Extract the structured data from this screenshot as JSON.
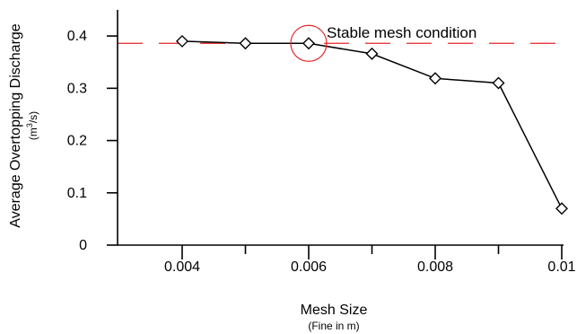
{
  "chart_data": {
    "type": "line",
    "title": "",
    "xlabel": "Mesh Size",
    "xlabel_sub": "(Fine in m)",
    "ylabel": "Average Overtopping Discharge",
    "ylabel_unit_prefix": "(m",
    "ylabel_unit_exp": "3",
    "ylabel_unit_suffix": "/s)",
    "xlim": [
      0.003,
      0.01
    ],
    "ylim": [
      0,
      0.45
    ],
    "xticks": [
      0.004,
      0.006,
      0.008,
      0.01
    ],
    "xtick_labels": [
      "0.004",
      "0.006",
      "0.008",
      "0.01"
    ],
    "yticks": [
      0,
      0.1,
      0.2,
      0.3,
      0.4
    ],
    "ytick_labels": [
      "0",
      "0.1",
      "0.2",
      "0.3",
      "0.4"
    ],
    "grid": false,
    "series": [
      {
        "x": [
          0.004,
          0.005,
          0.006,
          0.007,
          0.008,
          0.009,
          0.01
        ],
        "y": [
          0.39,
          0.386,
          0.386,
          0.366,
          0.319,
          0.31,
          0.07
        ],
        "marker": "diamond",
        "color": "#000000"
      }
    ],
    "reference_line": {
      "y": 0.386,
      "style": "dashed",
      "color": "#e8262a"
    },
    "annotations": [
      {
        "text": "Stable mesh condition",
        "x": 0.006,
        "y": 0.386,
        "highlight": "circle",
        "color": "#e8262a"
      }
    ]
  }
}
